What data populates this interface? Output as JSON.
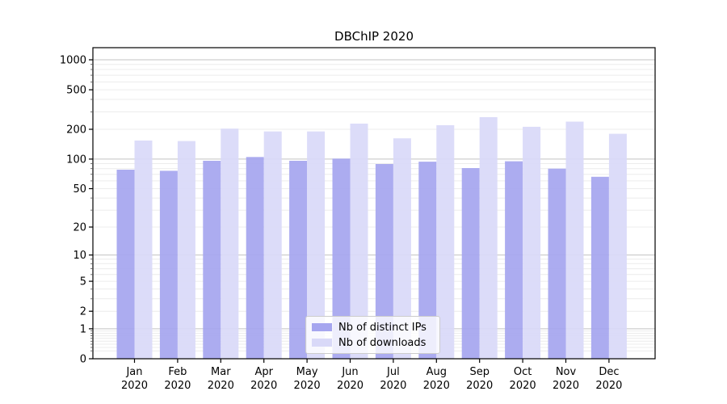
{
  "title": "DBChIP 2020",
  "chart_data": {
    "type": "bar",
    "title": "DBChIP 2020",
    "y_scale": "log1p",
    "ylim": [
      0,
      1330
    ],
    "y_ticks": [
      0,
      1,
      2,
      5,
      10,
      20,
      50,
      100,
      200,
      500,
      1000
    ],
    "grid": true,
    "legend_position": "lower center",
    "xlabel": "",
    "ylabel": "",
    "categories": [
      "Jan 2020",
      "Feb 2020",
      "Mar 2020",
      "Apr 2020",
      "May 2020",
      "Jun 2020",
      "Jul 2020",
      "Aug 2020",
      "Sep 2020",
      "Oct 2020",
      "Nov 2020",
      "Dec 2020"
    ],
    "series": [
      {
        "name": "Nb of distinct IPs",
        "color": "#a5a5ef",
        "values": [
          78,
          76,
          96,
          105,
          96,
          101,
          89,
          94,
          81,
          95,
          80,
          66
        ]
      },
      {
        "name": "Nb of downloads",
        "color": "#d9d9f8",
        "values": [
          154,
          152,
          203,
          190,
          190,
          228,
          162,
          220,
          265,
          212,
          239,
          180
        ]
      }
    ]
  },
  "colors": {
    "grid_major": "#c3c3c3",
    "grid_minor": "#ececec",
    "axis": "#000000",
    "tick_text": "#000000",
    "legend_border": "#cccccc"
  }
}
